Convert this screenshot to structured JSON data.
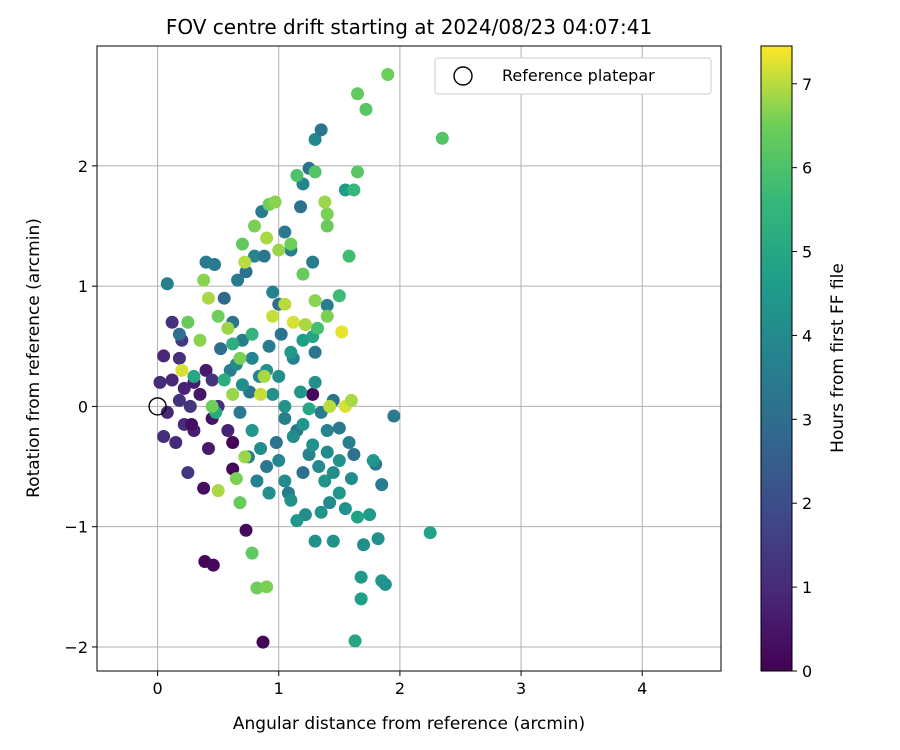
{
  "chart_data": {
    "type": "scatter",
    "title": "FOV centre drift starting at 2024/08/23 04:07:41",
    "xlabel": "Angular distance from reference (arcmin)",
    "ylabel": "Rotation from reference (arcmin)",
    "xlim": [
      -0.5,
      4.65
    ],
    "ylim": [
      -2.2,
      2.997
    ],
    "xticks": [
      0,
      1,
      2,
      3,
      4
    ],
    "yticks": [
      -2,
      -1,
      0,
      1,
      2
    ],
    "grid": true,
    "legend": {
      "position": "top-right",
      "entries": [
        "Reference platepar"
      ]
    },
    "reference_point": {
      "x": 0,
      "y": 0,
      "label": "Reference platepar"
    },
    "colorbar": {
      "label": "Hours from first FF file",
      "range": [
        0,
        7.45
      ],
      "ticks": [
        0,
        1,
        2,
        3,
        4,
        5,
        6,
        7
      ],
      "colormap": "viridis"
    },
    "points": [
      {
        "x": 0.05,
        "y": 0.42,
        "c": 0.9
      },
      {
        "x": 0.12,
        "y": 0.7,
        "c": 1.2
      },
      {
        "x": 0.18,
        "y": 0.4,
        "c": 1.1
      },
      {
        "x": 0.22,
        "y": 0.15,
        "c": 0.8
      },
      {
        "x": 0.08,
        "y": -0.05,
        "c": 0.9
      },
      {
        "x": 0.15,
        "y": -0.3,
        "c": 1.0
      },
      {
        "x": 0.25,
        "y": -0.55,
        "c": 1.3
      },
      {
        "x": 0.3,
        "y": -0.2,
        "c": 0.7
      },
      {
        "x": 0.02,
        "y": 0.2,
        "c": 1.0
      },
      {
        "x": 0.18,
        "y": 0.05,
        "c": 1.2
      },
      {
        "x": 0.35,
        "y": 0.1,
        "c": 0.5
      },
      {
        "x": 0.42,
        "y": -0.35,
        "c": 0.6
      },
      {
        "x": 0.38,
        "y": -0.68,
        "c": 0.3
      },
      {
        "x": 0.05,
        "y": -0.25,
        "c": 1.1
      },
      {
        "x": 0.27,
        "y": 0.0,
        "c": 1.3
      },
      {
        "x": 0.12,
        "y": 0.22,
        "c": 0.9
      },
      {
        "x": 0.22,
        "y": -0.15,
        "c": 1.1
      },
      {
        "x": 0.4,
        "y": 0.3,
        "c": 0.6
      },
      {
        "x": 0.45,
        "y": -0.1,
        "c": 0.4
      },
      {
        "x": 0.3,
        "y": 0.2,
        "c": 0.7
      },
      {
        "x": 0.62,
        "y": -0.52,
        "c": 0.2
      },
      {
        "x": 0.73,
        "y": -1.03,
        "c": 0.2
      },
      {
        "x": 0.39,
        "y": -1.29,
        "c": 0.1
      },
      {
        "x": 0.46,
        "y": -1.32,
        "c": 0.2
      },
      {
        "x": 0.87,
        "y": -1.96,
        "c": 0.1
      },
      {
        "x": 1.28,
        "y": 0.1,
        "c": 0.2
      },
      {
        "x": 0.62,
        "y": -0.3,
        "c": 0.1
      },
      {
        "x": 0.28,
        "y": -0.15,
        "c": 0.3
      },
      {
        "x": 0.2,
        "y": 0.55,
        "c": 1.4
      },
      {
        "x": 0.45,
        "y": 0.22,
        "c": 1.2
      },
      {
        "x": 0.5,
        "y": 0.0,
        "c": 1.1
      },
      {
        "x": 0.58,
        "y": -0.2,
        "c": 0.8
      },
      {
        "x": 0.08,
        "y": 1.02,
        "c": 3.6
      },
      {
        "x": 0.18,
        "y": 0.6,
        "c": 3.0
      },
      {
        "x": 0.4,
        "y": 1.2,
        "c": 3.4
      },
      {
        "x": 0.47,
        "y": 1.18,
        "c": 3.5
      },
      {
        "x": 0.55,
        "y": 0.9,
        "c": 2.8
      },
      {
        "x": 0.62,
        "y": 0.7,
        "c": 3.2
      },
      {
        "x": 0.7,
        "y": 0.55,
        "c": 3.6
      },
      {
        "x": 0.78,
        "y": 0.4,
        "c": 3.8
      },
      {
        "x": 0.66,
        "y": 1.05,
        "c": 3.4
      },
      {
        "x": 0.73,
        "y": 1.12,
        "c": 3.1
      },
      {
        "x": 0.8,
        "y": 1.25,
        "c": 3.9
      },
      {
        "x": 0.86,
        "y": 1.62,
        "c": 3.5
      },
      {
        "x": 0.88,
        "y": 1.25,
        "c": 3.3
      },
      {
        "x": 0.95,
        "y": 0.95,
        "c": 3.7
      },
      {
        "x": 1.0,
        "y": 0.85,
        "c": 3.0
      },
      {
        "x": 1.05,
        "y": 1.45,
        "c": 3.4
      },
      {
        "x": 1.1,
        "y": 1.3,
        "c": 3.6
      },
      {
        "x": 1.18,
        "y": 1.66,
        "c": 3.2
      },
      {
        "x": 1.2,
        "y": 1.85,
        "c": 3.8
      },
      {
        "x": 1.25,
        "y": 1.98,
        "c": 3.1
      },
      {
        "x": 1.28,
        "y": 1.2,
        "c": 3.5
      },
      {
        "x": 1.3,
        "y": 2.22,
        "c": 3.9
      },
      {
        "x": 1.35,
        "y": 2.3,
        "c": 3.3
      },
      {
        "x": 1.4,
        "y": 0.84,
        "c": 3.6
      },
      {
        "x": 1.02,
        "y": 0.6,
        "c": 3.2
      },
      {
        "x": 0.92,
        "y": 0.5,
        "c": 3.5
      },
      {
        "x": 0.84,
        "y": 0.25,
        "c": 3.8
      },
      {
        "x": 0.76,
        "y": 0.12,
        "c": 3.2
      },
      {
        "x": 0.68,
        "y": -0.05,
        "c": 3.4
      },
      {
        "x": 0.6,
        "y": 0.3,
        "c": 3.6
      },
      {
        "x": 0.52,
        "y": 0.48,
        "c": 3.0
      },
      {
        "x": 1.12,
        "y": 0.4,
        "c": 3.7
      },
      {
        "x": 1.3,
        "y": 0.45,
        "c": 3.3
      },
      {
        "x": 1.35,
        "y": -0.05,
        "c": 3.5
      },
      {
        "x": 1.45,
        "y": 0.05,
        "c": 3.2
      },
      {
        "x": 1.5,
        "y": -0.18,
        "c": 3.4
      },
      {
        "x": 1.58,
        "y": -0.3,
        "c": 3.6
      },
      {
        "x": 1.62,
        "y": -0.4,
        "c": 3.1
      },
      {
        "x": 1.25,
        "y": -0.4,
        "c": 3.8
      },
      {
        "x": 1.15,
        "y": -0.2,
        "c": 3.3
      },
      {
        "x": 1.05,
        "y": -0.1,
        "c": 3.6
      },
      {
        "x": 0.98,
        "y": -0.3,
        "c": 3.2
      },
      {
        "x": 0.9,
        "y": -0.5,
        "c": 3.4
      },
      {
        "x": 0.82,
        "y": -0.62,
        "c": 3.7
      },
      {
        "x": 0.75,
        "y": -0.42,
        "c": 3.5
      },
      {
        "x": 1.95,
        "y": -0.08,
        "c": 3.4
      },
      {
        "x": 1.85,
        "y": -0.65,
        "c": 3.6
      },
      {
        "x": 1.8,
        "y": -0.48,
        "c": 3.3
      },
      {
        "x": 1.4,
        "y": -0.2,
        "c": 3.8
      },
      {
        "x": 1.2,
        "y": -0.55,
        "c": 3.1
      },
      {
        "x": 1.08,
        "y": -0.72,
        "c": 3.5
      },
      {
        "x": 1.0,
        "y": -0.45,
        "c": 3.9
      },
      {
        "x": 0.95,
        "y": 0.1,
        "c": 4.2
      },
      {
        "x": 1.05,
        "y": 0.0,
        "c": 4.3
      },
      {
        "x": 1.12,
        "y": -0.25,
        "c": 4.1
      },
      {
        "x": 1.2,
        "y": -0.15,
        "c": 4.4
      },
      {
        "x": 1.28,
        "y": -0.32,
        "c": 4.2
      },
      {
        "x": 1.33,
        "y": -0.5,
        "c": 4.0
      },
      {
        "x": 1.38,
        "y": -0.62,
        "c": 4.3
      },
      {
        "x": 1.45,
        "y": -0.55,
        "c": 4.1
      },
      {
        "x": 1.5,
        "y": -0.72,
        "c": 4.4
      },
      {
        "x": 1.55,
        "y": -0.85,
        "c": 4.2
      },
      {
        "x": 1.42,
        "y": -0.8,
        "c": 4.0
      },
      {
        "x": 1.35,
        "y": -0.88,
        "c": 4.3
      },
      {
        "x": 1.22,
        "y": -0.9,
        "c": 4.1
      },
      {
        "x": 1.15,
        "y": -0.95,
        "c": 4.4
      },
      {
        "x": 1.1,
        "y": -0.78,
        "c": 4.2
      },
      {
        "x": 1.05,
        "y": -0.62,
        "c": 4.0
      },
      {
        "x": 0.92,
        "y": -0.72,
        "c": 4.3
      },
      {
        "x": 0.85,
        "y": -0.35,
        "c": 4.1
      },
      {
        "x": 0.78,
        "y": -0.2,
        "c": 4.4
      },
      {
        "x": 0.7,
        "y": 0.18,
        "c": 4.2
      },
      {
        "x": 0.65,
        "y": 0.35,
        "c": 4.0
      },
      {
        "x": 0.9,
        "y": 0.3,
        "c": 4.3
      },
      {
        "x": 1.0,
        "y": 0.25,
        "c": 4.1
      },
      {
        "x": 1.18,
        "y": 0.12,
        "c": 4.4
      },
      {
        "x": 1.3,
        "y": 0.2,
        "c": 4.2
      },
      {
        "x": 1.4,
        "y": -0.38,
        "c": 4.0
      },
      {
        "x": 1.5,
        "y": -0.45,
        "c": 4.3
      },
      {
        "x": 1.6,
        "y": -0.6,
        "c": 4.1
      },
      {
        "x": 1.3,
        "y": -1.12,
        "c": 4.2
      },
      {
        "x": 1.45,
        "y": -1.12,
        "c": 4.3
      },
      {
        "x": 1.7,
        "y": -1.15,
        "c": 4.1
      },
      {
        "x": 1.78,
        "y": -0.45,
        "c": 4.4
      },
      {
        "x": 1.82,
        "y": -1.1,
        "c": 4.2
      },
      {
        "x": 1.85,
        "y": -1.45,
        "c": 4.5
      },
      {
        "x": 1.88,
        "y": -1.48,
        "c": 4.3
      },
      {
        "x": 1.68,
        "y": -1.42,
        "c": 4.5
      },
      {
        "x": 1.75,
        "y": -0.9,
        "c": 4.6
      },
      {
        "x": 1.65,
        "y": -0.92,
        "c": 4.8
      },
      {
        "x": 1.68,
        "y": -1.6,
        "c": 4.7
      },
      {
        "x": 1.63,
        "y": -1.95,
        "c": 4.9
      },
      {
        "x": 2.25,
        "y": -1.05,
        "c": 4.8
      },
      {
        "x": 1.55,
        "y": 1.8,
        "c": 4.6
      },
      {
        "x": 0.92,
        "y": -0.72,
        "c": 4.2
      },
      {
        "x": 1.1,
        "y": 0.45,
        "c": 4.5
      },
      {
        "x": 1.2,
        "y": 0.55,
        "c": 4.7
      },
      {
        "x": 1.28,
        "y": 0.58,
        "c": 4.9
      },
      {
        "x": 1.25,
        "y": -0.02,
        "c": 5.0
      },
      {
        "x": 0.55,
        "y": 0.22,
        "c": 5.2
      },
      {
        "x": 0.48,
        "y": -0.05,
        "c": 5.1
      },
      {
        "x": 0.62,
        "y": 0.52,
        "c": 5.3
      },
      {
        "x": 0.78,
        "y": 0.6,
        "c": 5.5
      },
      {
        "x": 0.3,
        "y": 0.25,
        "c": 5.0
      },
      {
        "x": 1.62,
        "y": 1.8,
        "c": 5.6
      },
      {
        "x": 1.58,
        "y": 1.25,
        "c": 5.8
      },
      {
        "x": 1.5,
        "y": 0.92,
        "c": 5.7
      },
      {
        "x": 1.32,
        "y": 0.65,
        "c": 5.9
      },
      {
        "x": 1.15,
        "y": 1.92,
        "c": 6.0
      },
      {
        "x": 1.3,
        "y": 1.95,
        "c": 6.1
      },
      {
        "x": 1.65,
        "y": 1.95,
        "c": 6.2
      },
      {
        "x": 1.65,
        "y": 2.6,
        "c": 6.3
      },
      {
        "x": 1.72,
        "y": 2.47,
        "c": 6.2
      },
      {
        "x": 2.35,
        "y": 2.23,
        "c": 6.1
      },
      {
        "x": 1.9,
        "y": 2.76,
        "c": 6.5
      },
      {
        "x": 1.4,
        "y": 1.6,
        "c": 6.6
      },
      {
        "x": 1.4,
        "y": 1.5,
        "c": 6.4
      },
      {
        "x": 1.38,
        "y": 1.7,
        "c": 6.8
      },
      {
        "x": 0.92,
        "y": 1.68,
        "c": 6.5
      },
      {
        "x": 0.97,
        "y": 1.7,
        "c": 6.7
      },
      {
        "x": 0.8,
        "y": 1.5,
        "c": 6.6
      },
      {
        "x": 0.7,
        "y": 1.35,
        "c": 6.3
      },
      {
        "x": 0.9,
        "y": 1.4,
        "c": 6.9
      },
      {
        "x": 1.0,
        "y": 1.3,
        "c": 6.8
      },
      {
        "x": 1.1,
        "y": 1.35,
        "c": 6.5
      },
      {
        "x": 1.2,
        "y": 1.1,
        "c": 6.4
      },
      {
        "x": 1.3,
        "y": 0.88,
        "c": 6.7
      },
      {
        "x": 1.4,
        "y": 0.75,
        "c": 6.6
      },
      {
        "x": 0.38,
        "y": 1.05,
        "c": 6.7
      },
      {
        "x": 0.42,
        "y": 0.9,
        "c": 6.9
      },
      {
        "x": 0.5,
        "y": 0.75,
        "c": 6.5
      },
      {
        "x": 0.58,
        "y": 0.65,
        "c": 6.8
      },
      {
        "x": 0.68,
        "y": 0.4,
        "c": 6.6
      },
      {
        "x": 0.25,
        "y": 0.7,
        "c": 6.4
      },
      {
        "x": 0.35,
        "y": 0.55,
        "c": 6.7
      },
      {
        "x": 0.45,
        "y": 0.0,
        "c": 6.5
      },
      {
        "x": 0.62,
        "y": 0.1,
        "c": 6.8
      },
      {
        "x": 0.5,
        "y": -0.7,
        "c": 6.9
      },
      {
        "x": 0.65,
        "y": -0.6,
        "c": 6.6
      },
      {
        "x": 0.68,
        "y": -0.8,
        "c": 6.4
      },
      {
        "x": 0.72,
        "y": -0.42,
        "c": 6.8
      },
      {
        "x": 0.78,
        "y": -1.22,
        "c": 6.3
      },
      {
        "x": 0.82,
        "y": -1.51,
        "c": 6.5
      },
      {
        "x": 0.9,
        "y": -1.5,
        "c": 6.6
      },
      {
        "x": 0.95,
        "y": 0.75,
        "c": 7.1
      },
      {
        "x": 1.05,
        "y": 0.85,
        "c": 7.0
      },
      {
        "x": 1.12,
        "y": 0.7,
        "c": 7.2
      },
      {
        "x": 1.22,
        "y": 0.68,
        "c": 6.9
      },
      {
        "x": 1.52,
        "y": 0.62,
        "c": 7.3
      },
      {
        "x": 1.55,
        "y": 0.0,
        "c": 7.2
      },
      {
        "x": 1.6,
        "y": 0.05,
        "c": 6.9
      },
      {
        "x": 1.42,
        "y": 0.0,
        "c": 7.0
      },
      {
        "x": 0.85,
        "y": 0.1,
        "c": 7.1
      },
      {
        "x": 0.88,
        "y": 0.25,
        "c": 6.9
      },
      {
        "x": 0.72,
        "y": 1.2,
        "c": 7.0
      },
      {
        "x": 0.2,
        "y": 0.3,
        "c": 7.2
      }
    ]
  }
}
